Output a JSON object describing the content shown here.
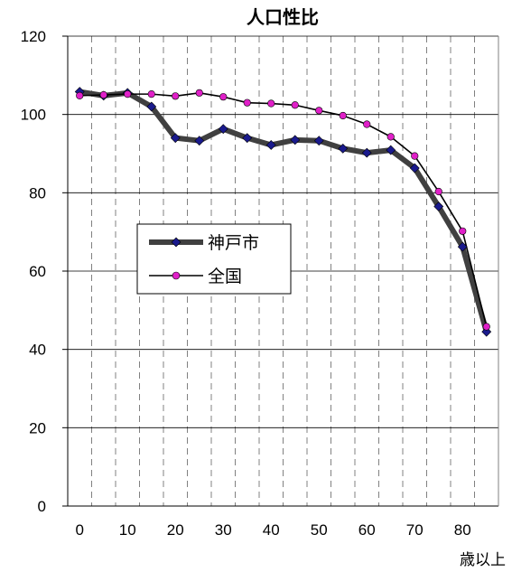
{
  "chart_data": {
    "type": "line",
    "title": "人口性比",
    "x_unit_label": "歳以上",
    "x": [
      0,
      5,
      10,
      15,
      20,
      25,
      30,
      35,
      40,
      45,
      50,
      55,
      60,
      65,
      70,
      75,
      80,
      85
    ],
    "x_tick_labels": [
      "0",
      "10",
      "20",
      "30",
      "40",
      "50",
      "60",
      "70",
      "80"
    ],
    "y_tick_labels": [
      "0",
      "20",
      "40",
      "60",
      "80",
      "100",
      "120"
    ],
    "ylim": [
      0,
      120
    ],
    "xlim": [
      -2.5,
      87.5
    ],
    "grid": {
      "horizontal": "solid",
      "vertical": "dashed"
    },
    "legend_position": "center-left",
    "series": [
      {
        "name": "神戸市",
        "line_color": "#404040",
        "marker": "diamond",
        "marker_color": "#1a1a8c",
        "values": [
          105.8,
          104.8,
          105.5,
          102.0,
          94.0,
          93.3,
          96.3,
          94.0,
          92.2,
          93.5,
          93.3,
          91.3,
          90.2,
          90.9,
          86.3,
          76.5,
          66.2,
          44.5
        ]
      },
      {
        "name": "全国",
        "line_color": "#000000",
        "marker": "circle",
        "marker_color": "#e020c8",
        "values": [
          104.8,
          105.0,
          105.2,
          105.2,
          104.7,
          105.5,
          104.5,
          103.0,
          102.8,
          102.4,
          101.0,
          99.7,
          97.5,
          94.3,
          89.4,
          80.3,
          70.2,
          45.8
        ]
      }
    ]
  }
}
